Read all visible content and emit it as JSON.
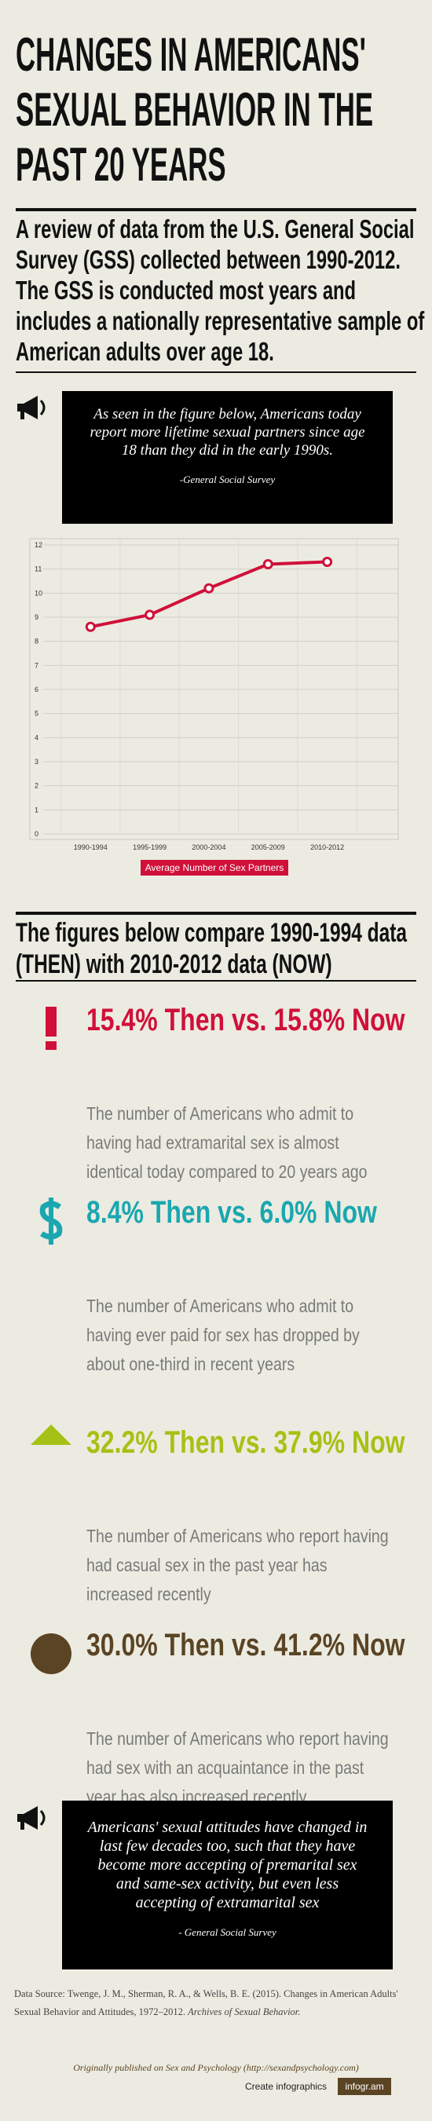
{
  "header": {
    "title": "CHANGES IN AMERICANS' SEXUAL BEHAVIOR IN THE PAST 20 YEARS",
    "subtitle": "A review of data from the U.S. General Social Survey (GSS) collected between 1990-2012. The GSS is conducted most years and includes a nationally representative sample of American adults over age 18."
  },
  "quote1": {
    "text": "As seen in the figure below, Americans today report more lifetime sexual partners since age 18 than they did in the early 1990s.",
    "source": "-General Social Survey"
  },
  "chart_data": {
    "type": "line",
    "categories": [
      "1990-1994",
      "1995-1999",
      "2000-2004",
      "2005-2009",
      "2010-2012"
    ],
    "series": [
      {
        "name": "Average Number of Sex Partners",
        "color": "#d0103a",
        "values": [
          8.6,
          9.1,
          10.2,
          11.2,
          11.3
        ]
      }
    ],
    "ylim": [
      0,
      12
    ],
    "yticks": [
      0,
      1,
      2,
      3,
      4,
      5,
      6,
      7,
      8,
      9,
      10,
      11,
      12
    ],
    "grid": true
  },
  "comparison": {
    "heading": "The figures below compare 1990-1994 data (THEN) with 2010-2012 data (NOW)",
    "stats": [
      {
        "headline": "15.4% Then vs. 15.8% Now",
        "description": "The number of Americans who admit to having had extramarital sex is almost identical today compared to 20 years ago",
        "color": "#d0103a"
      },
      {
        "headline": "8.4% Then vs. 6.0% Now",
        "description": "The number of Americans who admit to having ever paid for sex has dropped by about one-third in recent years",
        "color": "#1aa7b0"
      },
      {
        "headline": "32.2% Then vs. 37.9% Now",
        "description": "The number of Americans who report having had casual sex in the past year has increased recently",
        "color": "#a6c115"
      },
      {
        "headline": "30.0% Then vs. 41.2% Now",
        "description": "The number of Americans who report having had sex with an acquaintance in the past year has also increased recently",
        "color": "#5a4424"
      }
    ]
  },
  "quote2": {
    "text": "Americans' sexual attitudes have changed in last few decades too, such that they have become more accepting of premarital sex and same-sex activity, but even less accepting of extramarital sex",
    "source": "- General Social Survey"
  },
  "source": {
    "text": "Data Source: Twenge, J. M., Sherman, R. A., & Wells, B. E. (2015). Changes in American Adults' Sexual Behavior and Attitudes, 1972–2012.",
    "journal": "Archives of Sexual Behavior."
  },
  "footer": {
    "published": "Originally published on Sex and Psychology (http://sexandpsychology.com)",
    "create": "Create infographics",
    "brand": "infogr.am"
  }
}
